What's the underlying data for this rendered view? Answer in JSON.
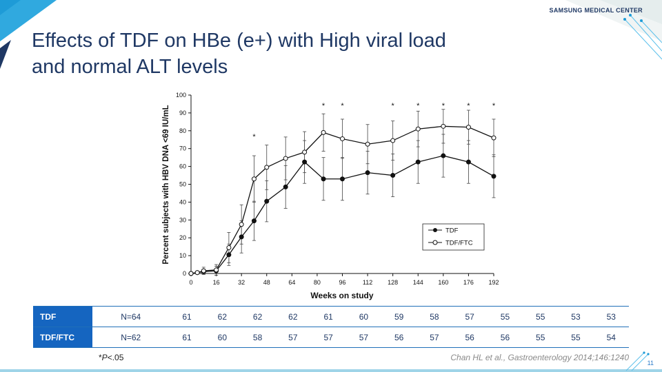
{
  "brand": "SAMSUNG MEDICAL CENTER",
  "title_line1": "Effects of TDF on HBe (e+) with High viral load",
  "title_line2": "and normal ALT levels",
  "chart_data": {
    "type": "line",
    "xlabel": "Weeks on study",
    "ylabel": "Percent subjects with HBV DNA <69 IU/mL",
    "xlim": [
      0,
      192
    ],
    "ylim": [
      0,
      100
    ],
    "x_ticks": [
      0,
      16,
      32,
      48,
      64,
      80,
      96,
      112,
      128,
      144,
      160,
      176,
      192
    ],
    "y_ticks": [
      0,
      10,
      20,
      30,
      40,
      50,
      60,
      70,
      80,
      90,
      100
    ],
    "legend_position": "bottom-right",
    "series": [
      {
        "name": "TDF",
        "marker": "filled-circle",
        "x": [
          0,
          4,
          8,
          16,
          24,
          32,
          40,
          48,
          60,
          72,
          84,
          96,
          112,
          128,
          144,
          160,
          176,
          192
        ],
        "y": [
          0,
          0.5,
          1,
          1.5,
          10.5,
          20.5,
          29.5,
          40.5,
          48.5,
          62.5,
          53,
          53,
          56.5,
          55,
          62.5,
          66,
          62.5,
          54.5
        ],
        "err": [
          0,
          0.5,
          1.5,
          2.5,
          6,
          9,
          11,
          11.5,
          12,
          12,
          12,
          12,
          12,
          12,
          12,
          12,
          12,
          12
        ]
      },
      {
        "name": "TDF/FTC",
        "marker": "open-circle",
        "x": [
          0,
          4,
          8,
          16,
          24,
          32,
          40,
          48,
          60,
          72,
          84,
          96,
          112,
          128,
          144,
          160,
          176,
          192
        ],
        "y": [
          0,
          0.5,
          1.5,
          2,
          14.5,
          27.5,
          53,
          59.5,
          64.5,
          68,
          79,
          75.5,
          72.5,
          74.5,
          81,
          82.5,
          82,
          76
        ],
        "err": [
          0,
          0.5,
          2,
          3,
          8.5,
          11,
          13,
          12.5,
          12,
          11.5,
          10.5,
          11,
          11,
          11,
          10,
          9.5,
          9.5,
          10.5
        ]
      }
    ],
    "significance_marker": "*",
    "significance_x": [
      40,
      84,
      96,
      128,
      144,
      160,
      176,
      192
    ]
  },
  "table": {
    "rows": [
      {
        "label": "TDF",
        "values": [
          "N=64",
          "61",
          "62",
          "62",
          "62",
          "61",
          "60",
          "59",
          "58",
          "57",
          "55",
          "55",
          "53",
          "53"
        ]
      },
      {
        "label": "TDF/FTC",
        "values": [
          "N=62",
          "61",
          "60",
          "58",
          "57",
          "57",
          "57",
          "56",
          "57",
          "56",
          "56",
          "55",
          "55",
          "54"
        ]
      }
    ]
  },
  "footnote_prefix": "*",
  "footnote_italic": "P",
  "footnote_rest": "<.05",
  "citation": "Chan HL et al., Gastroenterology 2014;146:1240",
  "page_number": "11",
  "colors": {
    "title": "#1f3864",
    "table_header_bg": "#1565c0",
    "table_border": "#1f6fb8",
    "accent": "#1e9bd7",
    "corner_dark": "#1f3864"
  }
}
